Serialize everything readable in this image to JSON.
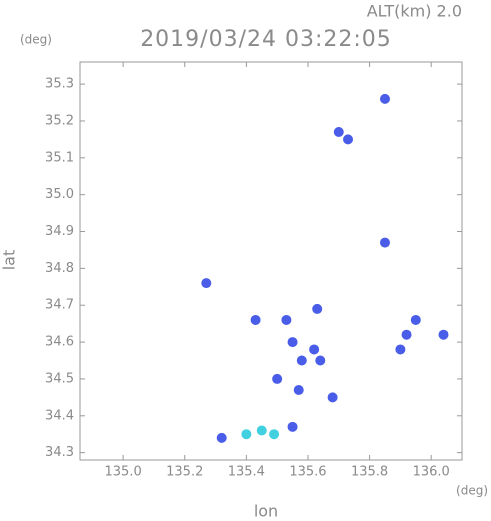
{
  "chart_data": {
    "type": "scatter",
    "title": "2019/03/24 03:22:05",
    "subtitle": "ALT(km) 2.0",
    "y_unit": "(deg)",
    "x_unit": "(deg)",
    "xlabel": "lon",
    "ylabel": "lat",
    "xlim": [
      134.86,
      136.1
    ],
    "ylim": [
      34.28,
      35.36
    ],
    "xticks": [
      {
        "value": 135,
        "label": "135.0"
      },
      135.2,
      135.4,
      135.6,
      135.8,
      {
        "value": 136,
        "label": "136.0"
      }
    ],
    "yticks": [
      34.3,
      34.4,
      34.5,
      34.6,
      34.7,
      34.8,
      34.9,
      {
        "value": 35,
        "label": "35.0"
      },
      35.1,
      35.2,
      35.3
    ],
    "series": [
      {
        "color": "#4a5de8",
        "x": [
          135.85,
          135.7,
          135.73,
          135.92,
          135.95,
          135.9,
          136.04,
          135.53,
          135.43,
          135.55,
          135.58,
          135.62,
          135.5,
          135.57,
          135.64,
          135.32,
          135.55,
          135.27,
          135.85,
          135.63,
          135.68
        ],
        "y": [
          35.26,
          35.17,
          35.15,
          34.62,
          34.66,
          34.58,
          34.62,
          34.66,
          34.66,
          34.6,
          34.55,
          34.58,
          34.5,
          34.47,
          34.55,
          34.34,
          34.37,
          34.76,
          34.87,
          34.69,
          34.45
        ]
      },
      {
        "color": "#40d0e0",
        "x": [
          135.4,
          135.45,
          135.49
        ],
        "y": [
          34.35,
          34.36,
          34.35
        ]
      }
    ]
  }
}
